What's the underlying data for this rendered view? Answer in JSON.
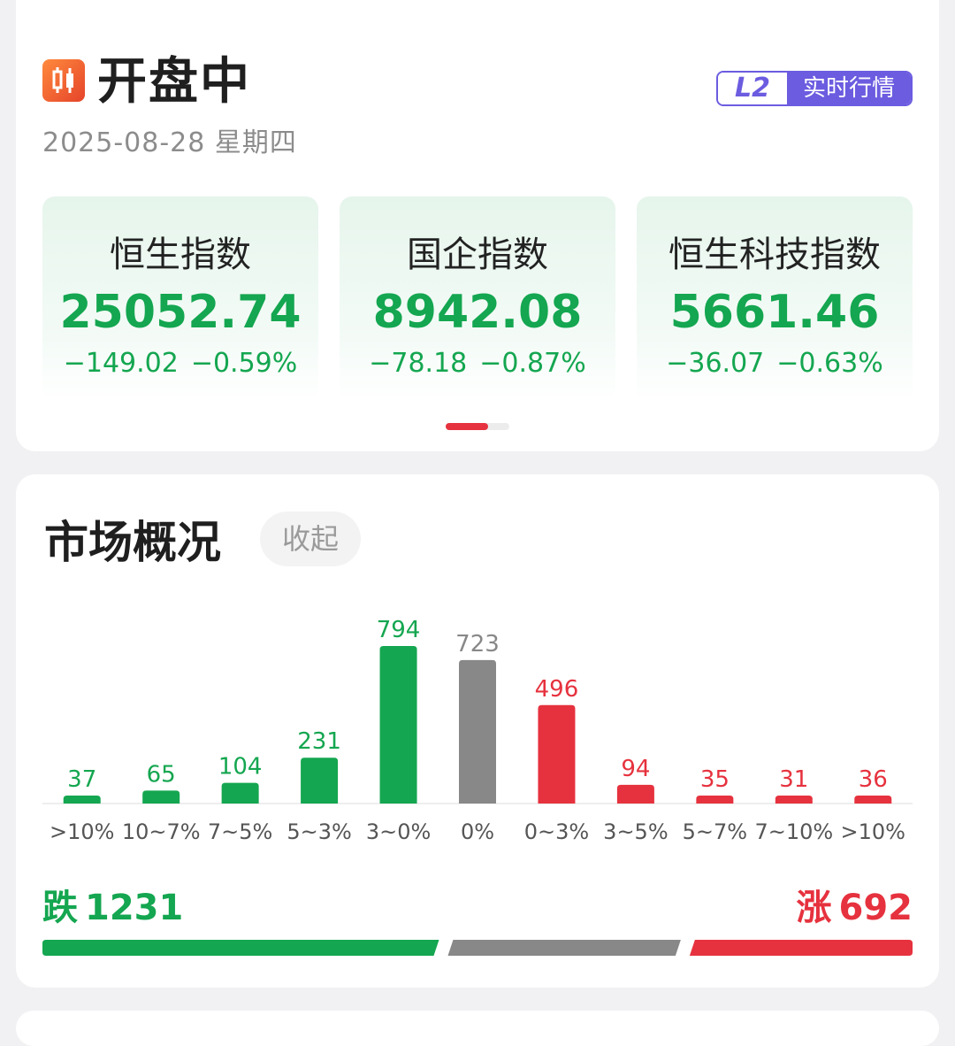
{
  "status": {
    "title": "开盘中",
    "date": "2025-08-28 星期四",
    "badge_l2": "L2",
    "badge_text": "实时行情"
  },
  "indices": [
    {
      "name": "恒生指数",
      "value": "25052.74",
      "change": "−149.02",
      "pct": "−0.59%"
    },
    {
      "name": "国企指数",
      "value": "8942.08",
      "change": "−78.18",
      "pct": "−0.87%"
    },
    {
      "name": "恒生科技指数",
      "value": "5661.46",
      "change": "−36.07",
      "pct": "−0.63%"
    }
  ],
  "market": {
    "title": "市场概况",
    "collapse_label": "收起",
    "down_label": "跌",
    "down_count": "1231",
    "up_label": "涨",
    "up_count": "692",
    "ratio": {
      "down": 1231,
      "flat": 723,
      "up": 692
    },
    "colors": {
      "down": "#14a650",
      "flat": "#888888",
      "up": "#e6323e"
    }
  },
  "chart_data": {
    "type": "bar",
    "categories": [
      ">10%",
      "10~7%",
      "7~5%",
      "5~3%",
      "3~0%",
      "0%",
      "0~3%",
      "3~5%",
      "5~7%",
      "7~10%",
      ">10%"
    ],
    "values": [
      37,
      65,
      104,
      231,
      794,
      723,
      496,
      94,
      35,
      31,
      36
    ],
    "bar_colors": [
      "#14a650",
      "#14a650",
      "#14a650",
      "#14a650",
      "#14a650",
      "#888888",
      "#e6323e",
      "#e6323e",
      "#e6323e",
      "#e6323e",
      "#e6323e"
    ],
    "title": "",
    "xlabel": "",
    "ylabel": "",
    "ylim": [
      0,
      794
    ],
    "grid": false
  }
}
